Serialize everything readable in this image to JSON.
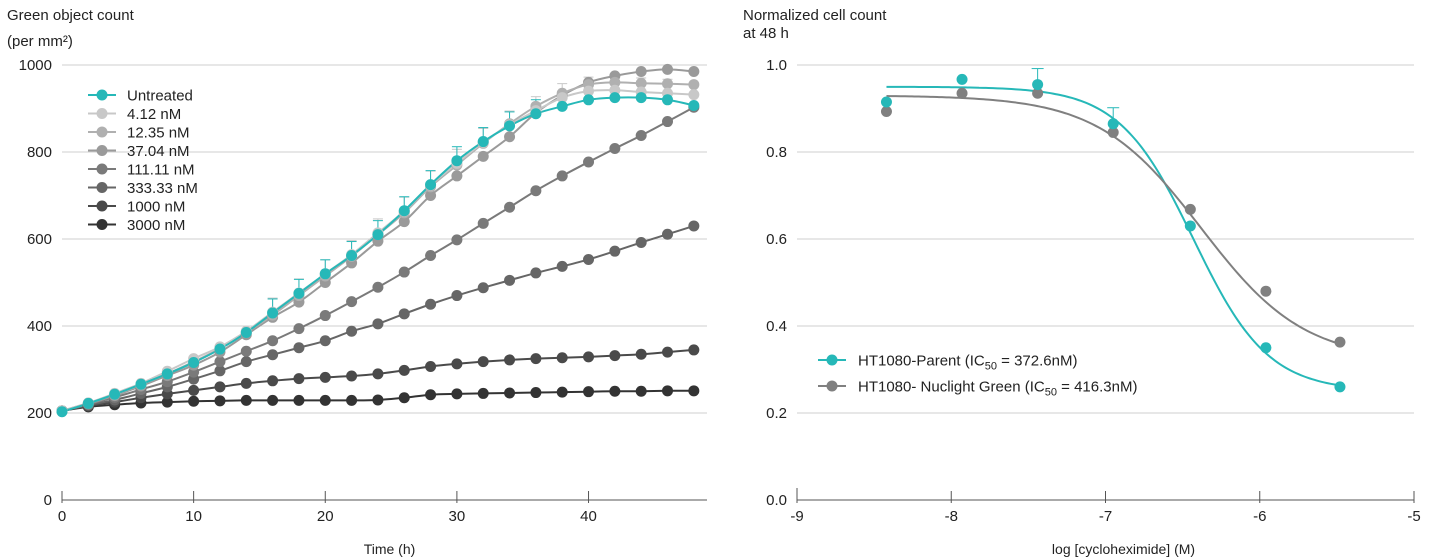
{
  "chart_data": [
    {
      "type": "line",
      "ylabel": [
        "Green object count",
        "(per mm²)"
      ],
      "xlabel": "Time (h)",
      "xlim": [
        0,
        49
      ],
      "ylim": [
        0,
        1000
      ],
      "xticks": [
        0,
        10,
        20,
        30,
        40
      ],
      "yticks": [
        0,
        200,
        400,
        600,
        800,
        1000
      ],
      "grid": "horizontal",
      "legend": "top-left",
      "x": [
        0,
        2,
        4,
        6,
        8,
        10,
        12,
        14,
        16,
        18,
        20,
        22,
        24,
        26,
        28,
        30,
        32,
        34,
        36,
        38,
        40,
        42,
        44,
        46,
        48
      ],
      "series": [
        {
          "name": "3000 nM",
          "color": "#333333",
          "values": [
            205,
            214,
            219,
            223,
            225,
            227,
            228,
            229,
            229,
            229,
            229,
            229,
            230,
            235,
            242,
            244,
            245,
            246,
            247,
            248,
            249,
            250,
            250,
            251,
            251
          ]
        },
        {
          "name": "1000 nM",
          "color": "#4a4a4a",
          "values": [
            205,
            216,
            225,
            235,
            244,
            252,
            260,
            268,
            274,
            279,
            282,
            285,
            290,
            298,
            307,
            313,
            318,
            322,
            325,
            327,
            329,
            332,
            335,
            340,
            345
          ]
        },
        {
          "name": "333.33 nM",
          "color": "#666666",
          "values": [
            205,
            218,
            230,
            245,
            260,
            278,
            297,
            318,
            334,
            350,
            366,
            388,
            405,
            428,
            450,
            470,
            488,
            505,
            522,
            537,
            553,
            572,
            592,
            611,
            630
          ]
        },
        {
          "name": "111.11 nM",
          "color": "#7a7a7a",
          "values": [
            205,
            220,
            236,
            254,
            272,
            294,
            318,
            342,
            366,
            394,
            424,
            456,
            489,
            524,
            562,
            598,
            636,
            673,
            711,
            745,
            777,
            808,
            838,
            870,
            903
          ]
        },
        {
          "name": "37.04 nM",
          "color": "#9a9a9a",
          "values": [
            205,
            221,
            240,
            262,
            286,
            310,
            340,
            380,
            420,
            455,
            500,
            545,
            595,
            640,
            700,
            745,
            790,
            835,
            890,
            930,
            960,
            975,
            985,
            990,
            985
          ]
        },
        {
          "name": "12.35 nM",
          "color": "#b0b0b0",
          "values": [
            205,
            223,
            242,
            265,
            290,
            318,
            348,
            385,
            425,
            470,
            515,
            560,
            610,
            660,
            720,
            770,
            820,
            865,
            905,
            935,
            955,
            960,
            958,
            957,
            955
          ]
        },
        {
          "name": "4.12 nM",
          "color": "#c8c8c8",
          "values": [
            205,
            223,
            245,
            268,
            296,
            325,
            352,
            388,
            432,
            476,
            520,
            564,
            614,
            664,
            724,
            774,
            822,
            862,
            895,
            925,
            940,
            942,
            938,
            935,
            932
          ]
        },
        {
          "name": "Untreated",
          "color": "#26b8b8",
          "values": [
            203,
            222,
            243,
            266,
            290,
            316,
            347,
            385,
            430,
            475,
            520,
            562,
            610,
            665,
            725,
            780,
            824,
            860,
            888,
            905,
            920,
            925,
            925,
            920,
            907
          ]
        }
      ]
    },
    {
      "type": "scatter",
      "ylabel": [
        "Normalized cell count",
        "at 48 h"
      ],
      "xlabel": "log [cycloheximide] (M)",
      "xlim": [
        -9,
        -5
      ],
      "ylim": [
        0.0,
        1.0
      ],
      "xticks": [
        -9,
        -8,
        -7,
        -6,
        -5
      ],
      "yticks": [
        0.0,
        0.2,
        0.4,
        0.6,
        0.8,
        1.0
      ],
      "ytick_labels": [
        "0.0",
        "0.2",
        "0.4",
        "0.6",
        "0.8",
        "1.0"
      ],
      "grid": "horizontal",
      "legend": "bottom-left",
      "x": [
        -8.42,
        -7.93,
        -7.44,
        -6.95,
        -6.45,
        -5.96,
        -5.48
      ],
      "series": [
        {
          "name": "HT1080-Parent",
          "ic50_label": "372.6nM",
          "color": "#26b8b8",
          "values": [
            0.915,
            0.967,
            0.955,
            0.865,
            0.63,
            0.35,
            0.26
          ],
          "fit": {
            "top": 0.95,
            "bottom": 0.25,
            "log_ic50": -6.43,
            "hill": 1.8
          }
        },
        {
          "name": "HT1080- Nuclight Green",
          "ic50_label": "416.3nM",
          "color": "#808080",
          "values": [
            0.893,
            0.935,
            0.935,
            0.845,
            0.668,
            0.48,
            0.363
          ],
          "fit": {
            "top": 0.93,
            "bottom": 0.32,
            "log_ic50": -6.38,
            "hill": 1.3
          }
        }
      ]
    }
  ]
}
